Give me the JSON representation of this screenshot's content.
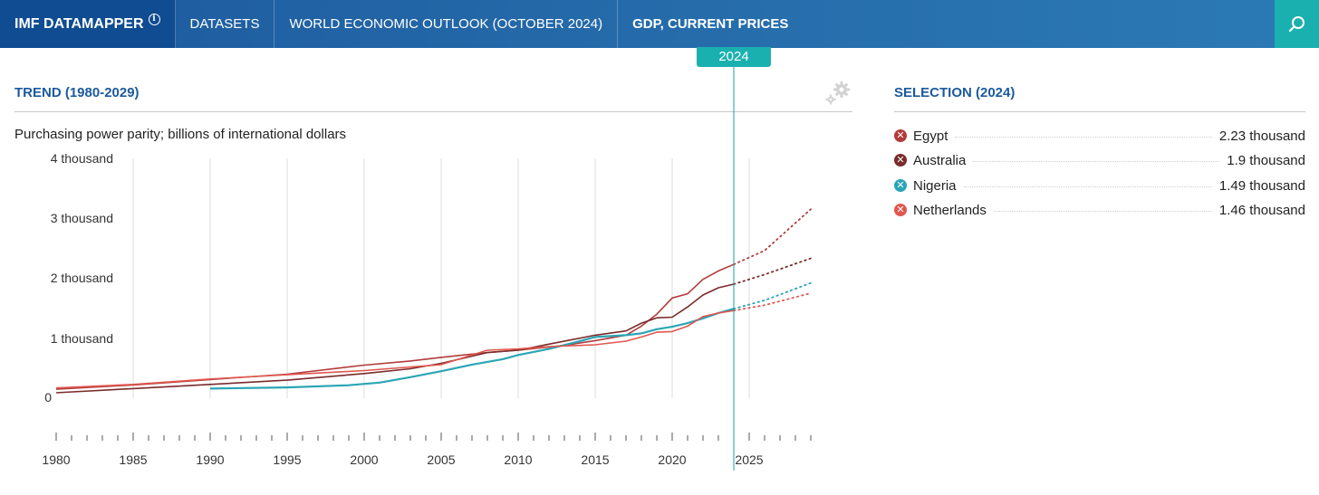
{
  "topbar": {
    "brand": "IMF DATAMAPPER",
    "info_icon": "i",
    "datasets": "DATASETS",
    "outlook": "WORLD ECONOMIC OUTLOOK (OCTOBER 2024)",
    "indicator": "GDP, CURRENT PRICES",
    "search_icon": "search-icon"
  },
  "trend": {
    "title": "TREND (1980-2029)",
    "subtitle": "Purchasing power parity; billions of international dollars",
    "selected_year": "2024"
  },
  "selection": {
    "title": "SELECTION (2024)",
    "items": [
      {
        "name": "Egypt",
        "value": "2.23 thousand",
        "color": "#b23b3b"
      },
      {
        "name": "Australia",
        "value": "1.9 thousand",
        "color": "#7a2b2b"
      },
      {
        "name": "Nigeria",
        "value": "1.49 thousand",
        "color": "#2aa5b5"
      },
      {
        "name": "Netherlands",
        "value": "1.46 thousand",
        "color": "#e0574f"
      }
    ]
  },
  "chart_data": {
    "type": "line",
    "y_ticks": [
      "0",
      "1 thousand",
      "2 thousand",
      "3 thousand",
      "4 thousand"
    ],
    "ylim": [
      0,
      4000
    ],
    "x_ticks": [
      "1980",
      "1985",
      "1990",
      "1995",
      "2000",
      "2005",
      "2010",
      "2015",
      "2020",
      "2025"
    ],
    "xlim": [
      1980,
      2029
    ],
    "highlight_year": 2024,
    "projection_start": 2024,
    "series": [
      {
        "name": "Egypt",
        "color": "#b23b3b",
        "points": [
          [
            1980,
            150
          ],
          [
            1985,
            220
          ],
          [
            1990,
            310
          ],
          [
            1995,
            400
          ],
          [
            2000,
            550
          ],
          [
            2003,
            620
          ],
          [
            2005,
            680
          ],
          [
            2008,
            760
          ],
          [
            2010,
            800
          ],
          [
            2013,
            880
          ],
          [
            2015,
            960
          ],
          [
            2017,
            1050
          ],
          [
            2018,
            1200
          ],
          [
            2019,
            1400
          ],
          [
            2020,
            1670
          ],
          [
            2021,
            1740
          ],
          [
            2022,
            1980
          ],
          [
            2023,
            2120
          ],
          [
            2024,
            2230
          ],
          [
            2026,
            2460
          ],
          [
            2029,
            3150
          ]
        ]
      },
      {
        "name": "Australia",
        "color": "#7a2b2b",
        "points": [
          [
            1980,
            90
          ],
          [
            1985,
            160
          ],
          [
            1990,
            230
          ],
          [
            1995,
            300
          ],
          [
            2000,
            410
          ],
          [
            2003,
            490
          ],
          [
            2005,
            580
          ],
          [
            2007,
            700
          ],
          [
            2008,
            760
          ],
          [
            2010,
            800
          ],
          [
            2012,
            900
          ],
          [
            2015,
            1050
          ],
          [
            2017,
            1120
          ],
          [
            2018,
            1250
          ],
          [
            2019,
            1340
          ],
          [
            2020,
            1350
          ],
          [
            2021,
            1520
          ],
          [
            2022,
            1720
          ],
          [
            2023,
            1840
          ],
          [
            2024,
            1900
          ],
          [
            2026,
            2060
          ],
          [
            2029,
            2330
          ]
        ]
      },
      {
        "name": "Nigeria",
        "color": "#2aa5b5",
        "points": [
          [
            1990,
            160
          ],
          [
            1995,
            180
          ],
          [
            1999,
            215
          ],
          [
            2001,
            260
          ],
          [
            2003,
            350
          ],
          [
            2005,
            450
          ],
          [
            2007,
            560
          ],
          [
            2009,
            650
          ],
          [
            2010,
            720
          ],
          [
            2012,
            820
          ],
          [
            2014,
            950
          ],
          [
            2015,
            1020
          ],
          [
            2017,
            1050
          ],
          [
            2018,
            1080
          ],
          [
            2019,
            1150
          ],
          [
            2020,
            1190
          ],
          [
            2021,
            1250
          ],
          [
            2022,
            1330
          ],
          [
            2023,
            1420
          ],
          [
            2024,
            1490
          ],
          [
            2026,
            1630
          ],
          [
            2029,
            1920
          ]
        ]
      },
      {
        "name": "Netherlands",
        "color": "#e0574f",
        "points": [
          [
            1980,
            170
          ],
          [
            1985,
            230
          ],
          [
            1990,
            320
          ],
          [
            1995,
            390
          ],
          [
            2000,
            460
          ],
          [
            2005,
            560
          ],
          [
            2008,
            800
          ],
          [
            2010,
            820
          ],
          [
            2012,
            860
          ],
          [
            2014,
            880
          ],
          [
            2015,
            890
          ],
          [
            2017,
            950
          ],
          [
            2018,
            1020
          ],
          [
            2019,
            1100
          ],
          [
            2020,
            1110
          ],
          [
            2021,
            1200
          ],
          [
            2022,
            1360
          ],
          [
            2023,
            1420
          ],
          [
            2024,
            1460
          ],
          [
            2026,
            1550
          ],
          [
            2029,
            1750
          ]
        ]
      }
    ]
  }
}
